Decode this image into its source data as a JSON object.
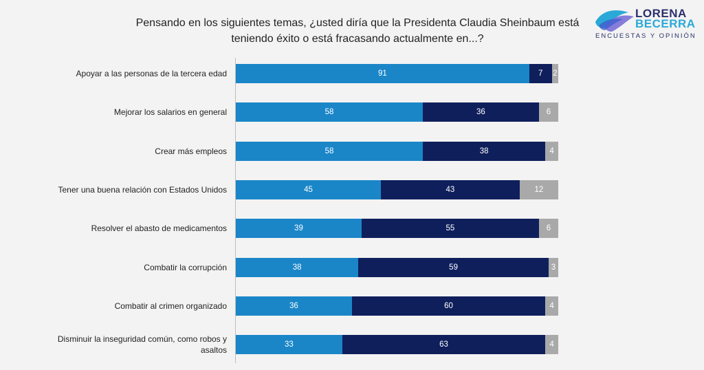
{
  "title": "Pensando en los siguientes temas, ¿usted diría que la Presidenta Claudia Sheinbaum está teniendo éxito o está fracasando actualmente en...?",
  "logo": {
    "line1": "LORENA",
    "line2": "BECERRA",
    "tagline": "ENCUESTAS Y OPINIÓN"
  },
  "chart_data": {
    "type": "bar",
    "orientation": "horizontal",
    "stacked": true,
    "title": "Pensando en los siguientes temas, ¿usted diría que la Presidenta Claudia Sheinbaum está teniendo éxito o está fracasando actualmente en...?",
    "categories": [
      "Apoyar a las personas de la tercera edad",
      "Mejorar los salarios en general",
      "Crear más empleos",
      "Tener una buena relación con Estados Unidos",
      "Resolver el abasto de medicamentos",
      "Combatir la corrupción",
      "Combatir al crimen organizado",
      "Disminuir la inseguridad común, como robos y asaltos"
    ],
    "series": [
      {
        "values": [
          91,
          58,
          58,
          45,
          39,
          38,
          36,
          33
        ],
        "color": "#1a86c8"
      },
      {
        "values": [
          7,
          36,
          38,
          43,
          55,
          59,
          60,
          63
        ],
        "color": "#0f1f5c"
      },
      {
        "values": [
          2,
          6,
          4,
          12,
          6,
          3,
          4,
          4
        ],
        "color": "#a9a9a9"
      }
    ],
    "xlim": [
      0,
      100
    ],
    "grid": false,
    "legend": "none"
  }
}
